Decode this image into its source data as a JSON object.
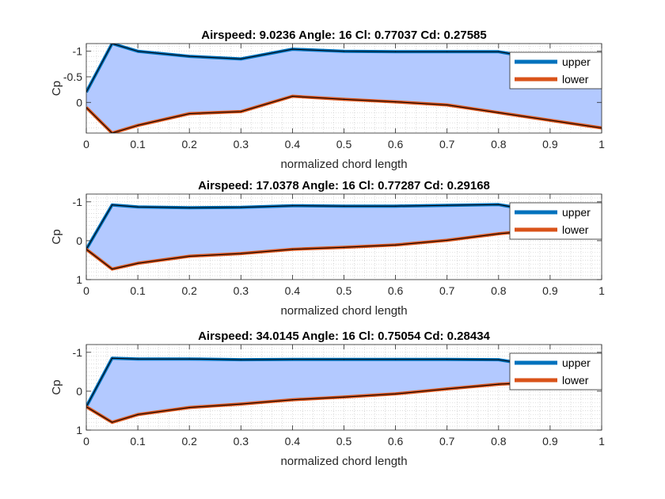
{
  "chart_data": [
    {
      "type": "area",
      "title": "Airspeed: 9.0236  Angle: 16  Cl: 0.77037  Cd: 0.27585",
      "xlabel": "normalized chord length",
      "ylabel": "Cp",
      "xlim": [
        0,
        1
      ],
      "ylim": [
        -1.15,
        0.6
      ],
      "y_reversed": true,
      "grid": "minor-dotted",
      "legend_position": "top-right",
      "x_ticks": [
        0,
        0.1,
        0.2,
        0.3,
        0.4,
        0.5,
        0.6,
        0.7,
        0.8,
        0.9,
        1
      ],
      "x_tick_labels": [
        "0",
        "0.1",
        "0.2",
        "0.3",
        "0.4",
        "0.5",
        "0.6",
        "0.7",
        "0.8",
        "0.9",
        "1"
      ],
      "y_ticks": [
        -1,
        -0.5,
        0
      ],
      "y_tick_labels": [
        "-1",
        "-0.5",
        "0"
      ],
      "x": [
        0,
        0.05,
        0.1,
        0.2,
        0.3,
        0.4,
        0.5,
        0.6,
        0.7,
        0.8,
        0.9,
        1
      ],
      "series": [
        {
          "name": "upper",
          "color": "#0072BD",
          "values": [
            -0.2,
            -1.15,
            -1.0,
            -0.9,
            -0.85,
            -1.04,
            -1.0,
            -0.99,
            -0.99,
            -0.99,
            -0.82,
            -0.55
          ]
        },
        {
          "name": "lower",
          "color": "#D95319",
          "values": [
            0.1,
            0.6,
            0.45,
            0.22,
            0.18,
            -0.12,
            -0.06,
            -0.01,
            0.05,
            0.2,
            0.35,
            0.5
          ]
        }
      ]
    },
    {
      "type": "area",
      "title": "Airspeed: 17.0378  Angle: 16  Cl: 0.77287  Cd: 0.29168",
      "xlabel": "normalized chord length",
      "ylabel": "Cp",
      "xlim": [
        0,
        1
      ],
      "ylim": [
        -1.2,
        1.0
      ],
      "y_reversed": true,
      "grid": "minor-dotted",
      "legend_position": "top-right",
      "x_ticks": [
        0,
        0.1,
        0.2,
        0.3,
        0.4,
        0.5,
        0.6,
        0.7,
        0.8,
        0.9,
        1
      ],
      "x_tick_labels": [
        "0",
        "0.1",
        "0.2",
        "0.3",
        "0.4",
        "0.5",
        "0.6",
        "0.7",
        "0.8",
        "0.9",
        "1"
      ],
      "y_ticks": [
        -1,
        0,
        1
      ],
      "y_tick_labels": [
        "-1",
        "0",
        "1"
      ],
      "x": [
        0,
        0.05,
        0.1,
        0.2,
        0.3,
        0.4,
        0.5,
        0.6,
        0.7,
        0.8,
        0.9,
        1
      ],
      "series": [
        {
          "name": "upper",
          "color": "#0072BD",
          "values": [
            0.22,
            -0.92,
            -0.87,
            -0.85,
            -0.86,
            -0.9,
            -0.89,
            -0.89,
            -0.91,
            -0.93,
            -0.7,
            -0.38
          ]
        },
        {
          "name": "lower",
          "color": "#D95319",
          "values": [
            0.22,
            0.73,
            0.58,
            0.4,
            0.33,
            0.22,
            0.17,
            0.11,
            -0.01,
            -0.18,
            -0.3,
            -0.36
          ]
        }
      ]
    },
    {
      "type": "area",
      "title": "Airspeed: 34.0145  Angle: 16  Cl: 0.75054  Cd: 0.28434",
      "xlabel": "normalized chord length",
      "ylabel": "Cp",
      "xlim": [
        0,
        1
      ],
      "ylim": [
        -1.2,
        1.0
      ],
      "y_reversed": true,
      "grid": "minor-dotted",
      "legend_position": "top-right",
      "x_ticks": [
        0,
        0.1,
        0.2,
        0.3,
        0.4,
        0.5,
        0.6,
        0.7,
        0.8,
        0.9,
        1
      ],
      "x_tick_labels": [
        "0",
        "0.1",
        "0.2",
        "0.3",
        "0.4",
        "0.5",
        "0.6",
        "0.7",
        "0.8",
        "0.9",
        "1"
      ],
      "y_ticks": [
        -1,
        0,
        1
      ],
      "y_tick_labels": [
        "-1",
        "0",
        "1"
      ],
      "x": [
        0,
        0.05,
        0.1,
        0.2,
        0.3,
        0.4,
        0.5,
        0.6,
        0.7,
        0.8,
        0.9,
        1
      ],
      "series": [
        {
          "name": "upper",
          "color": "#0072BD",
          "values": [
            0.4,
            -0.85,
            -0.83,
            -0.83,
            -0.81,
            -0.82,
            -0.82,
            -0.82,
            -0.82,
            -0.81,
            -0.6,
            -0.33
          ]
        },
        {
          "name": "lower",
          "color": "#D95319",
          "values": [
            0.4,
            0.8,
            0.6,
            0.42,
            0.33,
            0.22,
            0.15,
            0.07,
            -0.06,
            -0.18,
            -0.25,
            -0.3
          ]
        }
      ]
    }
  ]
}
